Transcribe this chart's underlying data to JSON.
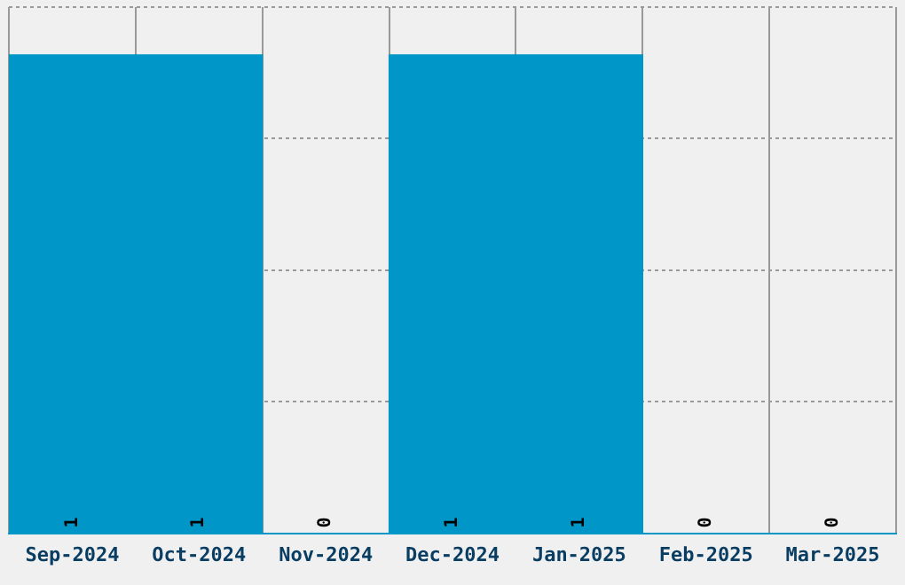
{
  "chart_data": {
    "type": "bar",
    "categories": [
      "Sep-2024",
      "Oct-2024",
      "Nov-2024",
      "Dec-2024",
      "Jan-2025",
      "Feb-2025",
      "Mar-2025"
    ],
    "values": [
      1,
      1,
      0,
      1,
      1,
      0,
      0
    ],
    "color": "#0096c8",
    "ylim": [
      0,
      1.1
    ],
    "yticks": [
      {
        "value": 0,
        "label": null
      },
      {
        "value": 0.275,
        "label": null
      },
      {
        "value": 0.55,
        "label": null
      },
      {
        "value": 0.825,
        "label": null
      },
      {
        "value": 1.1,
        "label": null
      }
    ],
    "grid": true,
    "tick_labels": "x",
    "data_labels": true,
    "legend": false
  }
}
